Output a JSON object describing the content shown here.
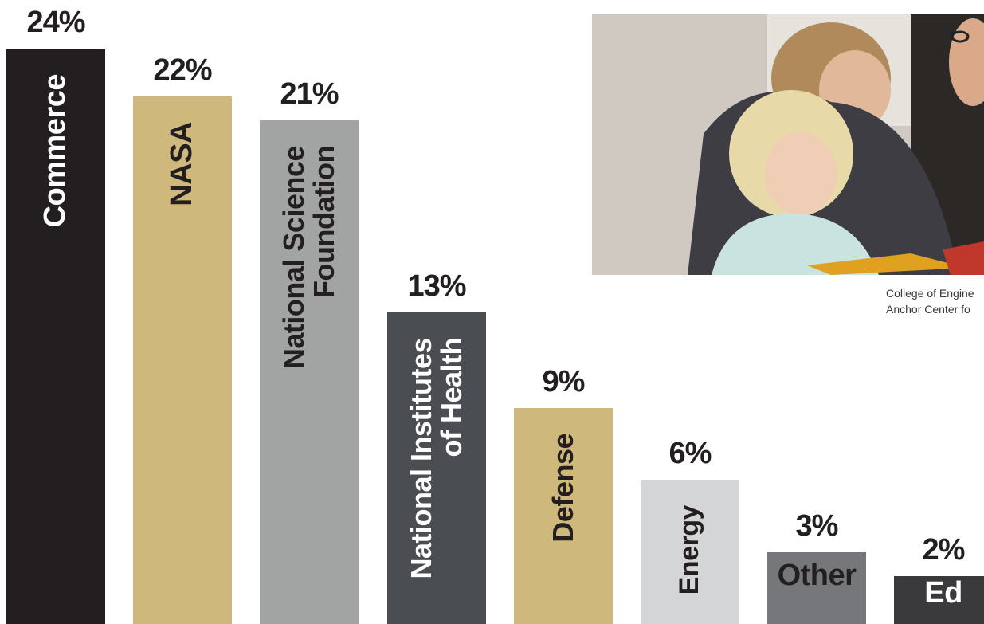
{
  "chart_data": {
    "type": "bar",
    "categories": [
      "Commerce",
      "NASA",
      "National Science\nFoundation",
      "National Institutes\nof Health",
      "Defense",
      "Energy",
      "Other",
      "Ed"
    ],
    "values": [
      24,
      22,
      21,
      13,
      9,
      6,
      3,
      2
    ],
    "value_labels": [
      "24%",
      "22%",
      "21%",
      "13%",
      "9%",
      "6%",
      "3%",
      "2%"
    ],
    "bar_colors": [
      "#231f20",
      "#cfb87c",
      "#a2a4a3",
      "#4a4d52",
      "#cfb87c",
      "#d4d5d6",
      "#76777a",
      "#3a3a3c"
    ],
    "label_colors": [
      "#ffffff",
      "#231f20",
      "#231f20",
      "#ffffff",
      "#231f20",
      "#231f20",
      "#231f20",
      "#ffffff"
    ],
    "label_orientation": [
      "vertical",
      "vertical",
      "vertical",
      "vertical",
      "vertical",
      "vertical",
      "horizontal",
      "horizontal"
    ],
    "ylim": [
      0,
      24
    ],
    "grid": false,
    "legend": "none"
  },
  "photo": {
    "description_icon": "photo-people-reading"
  },
  "caption": {
    "line1": "College of Engine",
    "line2": "Anchor Center fo"
  }
}
